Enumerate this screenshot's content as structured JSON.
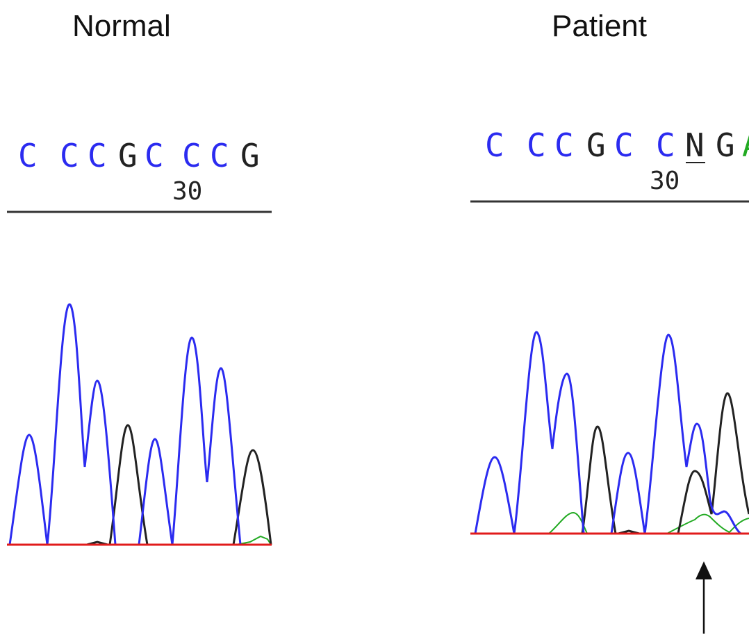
{
  "panels": {
    "normal": {
      "title": "Normal",
      "bases": [
        "C",
        "C",
        "C",
        "G",
        "C",
        "C",
        "C",
        "G"
      ],
      "position_label": "30"
    },
    "patient": {
      "title": "Patient",
      "bases": [
        "C",
        "C",
        "C",
        "G",
        "C",
        "C",
        "N",
        "G",
        "A"
      ],
      "position_label": "30"
    }
  },
  "colors": {
    "C": "#2b2bf0",
    "G": "#222222",
    "A": "#22aa22",
    "N": "#222222",
    "T": "#e11b1b",
    "baseline": "#e11b1b"
  },
  "icons": {
    "mutation_pointer": "arrow-up-icon"
  }
}
